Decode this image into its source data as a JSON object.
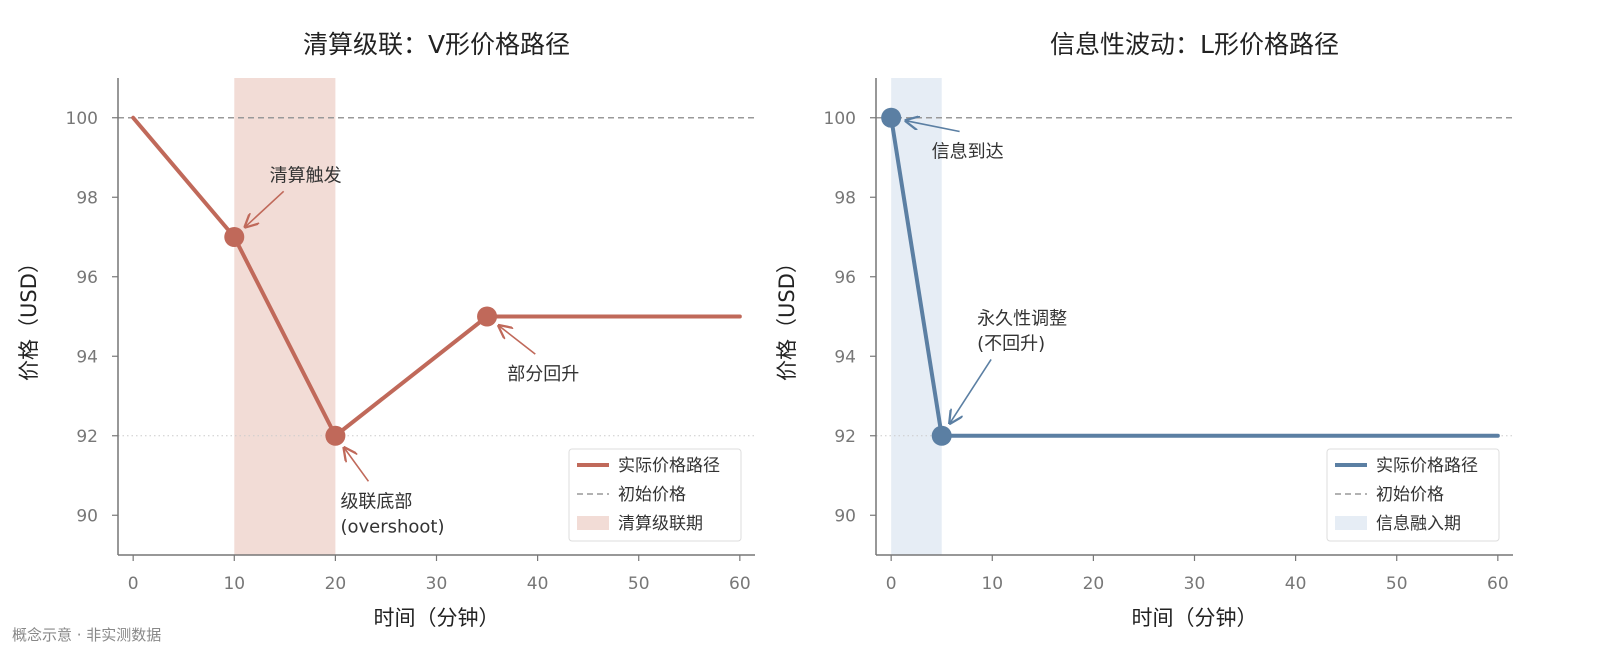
{
  "footer": "概念示意 · 非实测数据",
  "chart_data": [
    {
      "type": "line",
      "title": "清算级联：V形价格路径",
      "xlabel": "时间（分钟）",
      "ylabel": "价格（USD）",
      "xlim": [
        -1.5,
        61.5
      ],
      "ylim": [
        89.0,
        101.0
      ],
      "xticks": [
        0,
        10,
        20,
        30,
        40,
        50,
        60
      ],
      "yticks": [
        90,
        92,
        94,
        96,
        98,
        100
      ],
      "grid": false,
      "legend_position": "lower-right",
      "color": "#c0695a",
      "shade_color": "#f2dcd6",
      "series": [
        {
          "name": "实际价格路径",
          "x": [
            0,
            10,
            20,
            35,
            60
          ],
          "y": [
            100,
            97,
            92,
            95,
            95
          ]
        }
      ],
      "markers": [
        {
          "x": 10,
          "y": 97
        },
        {
          "x": 20,
          "y": 92
        },
        {
          "x": 35,
          "y": 95
        }
      ],
      "reference_line": {
        "name": "初始价格",
        "y": 100
      },
      "dotted_line": {
        "y": 92
      },
      "shaded_region": {
        "name": "清算级联期",
        "x0": 10,
        "x1": 20
      },
      "annotations": [
        {
          "lines": [
            "清算触发"
          ],
          "x": 10,
          "y": 97,
          "text_x": 13.5,
          "text_y": 98.4
        },
        {
          "lines": [
            "级联底部",
            "(overshoot)"
          ],
          "x": 20,
          "y": 92,
          "text_x": 20.5,
          "text_y": 90.2
        },
        {
          "lines": [
            "部分回升"
          ],
          "x": 35,
          "y": 95,
          "text_x": 37.0,
          "text_y": 93.4
        }
      ]
    },
    {
      "type": "line",
      "title": "信息性波动：L形价格路径",
      "xlabel": "时间（分钟）",
      "ylabel": "价格（USD）",
      "xlim": [
        -1.5,
        61.5
      ],
      "ylim": [
        89.0,
        101.0
      ],
      "xticks": [
        0,
        10,
        20,
        30,
        40,
        50,
        60
      ],
      "yticks": [
        90,
        92,
        94,
        96,
        98,
        100
      ],
      "grid": false,
      "legend_position": "lower-right",
      "color": "#5b7fa3",
      "shade_color": "#e6edf5",
      "series": [
        {
          "name": "实际价格路径",
          "x": [
            0,
            5,
            60
          ],
          "y": [
            100,
            92,
            92
          ]
        }
      ],
      "markers": [
        {
          "x": 0,
          "y": 100
        },
        {
          "x": 5,
          "y": 92
        }
      ],
      "reference_line": {
        "name": "初始价格",
        "y": 100
      },
      "dotted_line": {
        "y": 92
      },
      "shaded_region": {
        "name": "信息融入期",
        "x0": 0,
        "x1": 5
      },
      "annotations": [
        {
          "lines": [
            "信息到达"
          ],
          "x": 0,
          "y": 100,
          "text_x": 4.0,
          "text_y": 99.0
        },
        {
          "lines": [
            "永久性调整",
            "(不回升)"
          ],
          "x": 5,
          "y": 92,
          "text_x": 8.5,
          "text_y": 94.8
        }
      ]
    }
  ]
}
